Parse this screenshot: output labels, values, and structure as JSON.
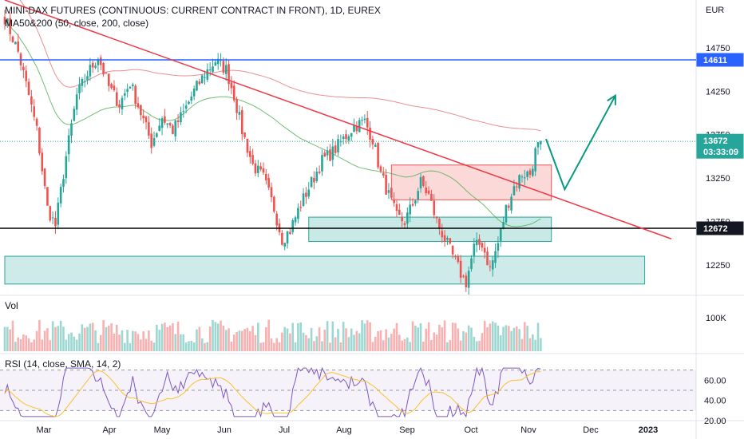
{
  "header": {
    "title": "MINI-DAX FUTURES (CONTINUOUS: CURRENT CONTRACT IN FRONT), 1D, EUREX",
    "ma_label": "MA50&200 (50, close, 200, close)",
    "currency": "EUR"
  },
  "price_tags": {
    "resistance": "14611",
    "current": "13672",
    "countdown": "03:33:09",
    "support": "12672"
  },
  "volume": {
    "label": "Vol",
    "axis_label": "100K"
  },
  "rsi": {
    "label": "RSI (14, close, SMA, 14, 2)",
    "ticks": [
      "60.00",
      "40.00",
      "20.00"
    ]
  },
  "colors": {
    "up": "#26a69a",
    "down": "#ef5350",
    "trendline": "#f23645",
    "resistance_line": "#2962ff",
    "support_line": "#000000",
    "ma50": "#4caf50",
    "ma200": "#e57373",
    "arrow": "#089981",
    "rsi": "#7e57c2",
    "rsi_ma": "#fbc02d",
    "current_tag": "#26a69a"
  },
  "chart_data": {
    "type": "candlestick",
    "x_ticks": [
      "Mar",
      "Apr",
      "May",
      "Jun",
      "Jul",
      "Aug",
      "Sep",
      "Oct",
      "Nov",
      "Dec",
      "2023"
    ],
    "y_ticks": [
      "14750",
      "14250",
      "13750",
      "13250",
      "12750",
      "12250"
    ],
    "ylim": [
      11900,
      15300
    ],
    "levels": {
      "resistance": 14611,
      "support": 12672,
      "current": 13672
    },
    "anchors": [
      {
        "day": 0,
        "price": 15100
      },
      {
        "day": 5,
        "price": 14700
      },
      {
        "day": 9,
        "price": 14200
      },
      {
        "day": 12,
        "price": 13800
      },
      {
        "day": 16,
        "price": 12900
      },
      {
        "day": 19,
        "price": 12700
      },
      {
        "day": 23,
        "price": 13500
      },
      {
        "day": 27,
        "price": 14200
      },
      {
        "day": 31,
        "price": 14450
      },
      {
        "day": 35,
        "price": 14650
      },
      {
        "day": 39,
        "price": 14300
      },
      {
        "day": 43,
        "price": 14100
      },
      {
        "day": 47,
        "price": 14350
      },
      {
        "day": 51,
        "price": 14000
      },
      {
        "day": 55,
        "price": 13650
      },
      {
        "day": 59,
        "price": 13950
      },
      {
        "day": 63,
        "price": 13800
      },
      {
        "day": 67,
        "price": 14000
      },
      {
        "day": 71,
        "price": 14250
      },
      {
        "day": 75,
        "price": 14450
      },
      {
        "day": 79,
        "price": 14600
      },
      {
        "day": 83,
        "price": 14500
      },
      {
        "day": 86,
        "price": 14200
      },
      {
        "day": 89,
        "price": 13800
      },
      {
        "day": 93,
        "price": 13400
      },
      {
        "day": 97,
        "price": 13250
      },
      {
        "day": 101,
        "price": 12900
      },
      {
        "day": 104,
        "price": 12550
      },
      {
        "day": 107,
        "price": 12650
      },
      {
        "day": 111,
        "price": 12950
      },
      {
        "day": 115,
        "price": 13200
      },
      {
        "day": 119,
        "price": 13450
      },
      {
        "day": 123,
        "price": 13550
      },
      {
        "day": 127,
        "price": 13700
      },
      {
        "day": 131,
        "price": 13850
      },
      {
        "day": 135,
        "price": 13900
      },
      {
        "day": 138,
        "price": 13700
      },
      {
        "day": 141,
        "price": 13300
      },
      {
        "day": 144,
        "price": 13050
      },
      {
        "day": 147,
        "price": 12800
      },
      {
        "day": 150,
        "price": 12750
      },
      {
        "day": 153,
        "price": 12950
      },
      {
        "day": 156,
        "price": 13200
      },
      {
        "day": 159,
        "price": 13050
      },
      {
        "day": 162,
        "price": 12750
      },
      {
        "day": 165,
        "price": 12550
      },
      {
        "day": 168,
        "price": 12350
      },
      {
        "day": 171,
        "price": 12150
      },
      {
        "day": 173,
        "price": 12050
      },
      {
        "day": 176,
        "price": 12450
      },
      {
        "day": 179,
        "price": 12500
      },
      {
        "day": 182,
        "price": 12200
      },
      {
        "day": 185,
        "price": 12500
      },
      {
        "day": 188,
        "price": 12900
      },
      {
        "day": 191,
        "price": 13150
      },
      {
        "day": 194,
        "price": 13300
      },
      {
        "day": 197,
        "price": 13300
      },
      {
        "day": 199,
        "price": 13550
      },
      {
        "day": 201,
        "price": 13672
      }
    ],
    "annotations": {
      "trendline": [
        {
          "day": 0,
          "price": 15300
        },
        {
          "day": 250,
          "price": 12550
        }
      ],
      "resistance_zone": {
        "day_from": 145,
        "day_to": 205,
        "price_from": 13000,
        "price_to": 13400
      },
      "support_zone": {
        "day_from": 114,
        "day_to": 205,
        "price_from": 12520,
        "price_to": 12800
      },
      "demand_zone": {
        "day_from": 0,
        "day_to": 240,
        "price_from": 12030,
        "price_to": 12350
      },
      "forecast_arrow": [
        {
          "day": 203,
          "price": 13700
        },
        {
          "day": 210,
          "price": 13120
        },
        {
          "day": 229,
          "price": 14200
        }
      ]
    }
  }
}
